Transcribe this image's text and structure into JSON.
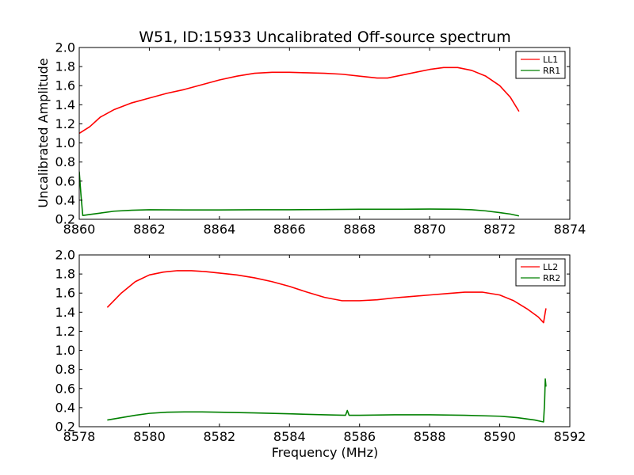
{
  "figure": {
    "title": "W51, ID:15933 Uncalibrated Off-source spectrum",
    "ylabel": "Uncalibrated Amplitude",
    "xlabel": "Frequency (MHz)"
  },
  "colors": {
    "series_1": "#ff0000",
    "series_2": "#008000",
    "axes": "#000000"
  },
  "chart_data": [
    {
      "type": "line",
      "xlim": [
        8860,
        8874
      ],
      "ylim": [
        0.2,
        2.0
      ],
      "xticks": [
        8860,
        8862,
        8864,
        8866,
        8868,
        8870,
        8872,
        8874
      ],
      "yticks": [
        0.2,
        0.4,
        0.6,
        0.8,
        1.0,
        1.2,
        1.4,
        1.6,
        1.8,
        2.0
      ],
      "xtick_labels": [
        "8860",
        "8862",
        "8864",
        "8866",
        "8868",
        "8870",
        "8872",
        "8874"
      ],
      "ytick_labels": [
        "0.2",
        "0.4",
        "0.6",
        "0.8",
        "1.0",
        "1.2",
        "1.4",
        "1.6",
        "1.8",
        "2.0"
      ],
      "legend_position": "top-right",
      "series": [
        {
          "name": "LL1",
          "color": "#ff0000",
          "x": [
            8860.0,
            8860.3,
            8860.6,
            8861.0,
            8861.5,
            8862.0,
            8862.5,
            8863.0,
            8863.5,
            8864.0,
            8864.5,
            8865.0,
            8865.5,
            8866.0,
            8866.5,
            8867.0,
            8867.5,
            8868.0,
            8868.5,
            8868.8,
            8869.2,
            8869.6,
            8870.0,
            8870.4,
            8870.8,
            8871.2,
            8871.6,
            8872.0,
            8872.3,
            8872.55
          ],
          "y": [
            1.1,
            1.17,
            1.27,
            1.35,
            1.42,
            1.47,
            1.52,
            1.56,
            1.61,
            1.66,
            1.7,
            1.73,
            1.74,
            1.74,
            1.735,
            1.73,
            1.72,
            1.7,
            1.68,
            1.68,
            1.71,
            1.74,
            1.77,
            1.79,
            1.79,
            1.76,
            1.7,
            1.6,
            1.48,
            1.33
          ]
        },
        {
          "name": "RR1",
          "color": "#008000",
          "x": [
            8860.0,
            8860.05,
            8860.1,
            8860.3,
            8860.6,
            8861.0,
            8861.5,
            8862.0,
            8863.0,
            8864.0,
            8865.0,
            8866.0,
            8867.0,
            8868.0,
            8869.0,
            8870.0,
            8870.8,
            8871.2,
            8871.6,
            8872.0,
            8872.3,
            8872.55
          ],
          "y": [
            0.7,
            0.45,
            0.24,
            0.25,
            0.265,
            0.285,
            0.295,
            0.3,
            0.298,
            0.298,
            0.3,
            0.3,
            0.302,
            0.305,
            0.305,
            0.307,
            0.305,
            0.3,
            0.288,
            0.27,
            0.255,
            0.235
          ]
        }
      ]
    },
    {
      "type": "line",
      "xlim": [
        8578,
        8592
      ],
      "ylim": [
        0.2,
        2.0
      ],
      "xticks": [
        8578,
        8580,
        8582,
        8584,
        8586,
        8588,
        8590,
        8592
      ],
      "yticks": [
        0.2,
        0.4,
        0.6,
        0.8,
        1.0,
        1.2,
        1.4,
        1.6,
        1.8,
        2.0
      ],
      "xtick_labels": [
        "8578",
        "8580",
        "8582",
        "8584",
        "8586",
        "8588",
        "8590",
        "8592"
      ],
      "ytick_labels": [
        "0.2",
        "0.4",
        "0.6",
        "0.8",
        "1.0",
        "1.2",
        "1.4",
        "1.6",
        "1.8",
        "2.0"
      ],
      "legend_position": "top-right",
      "series": [
        {
          "name": "LL2",
          "color": "#ff0000",
          "x": [
            8578.8,
            8579.2,
            8579.6,
            8580.0,
            8580.4,
            8580.8,
            8581.2,
            8581.6,
            8582.0,
            8582.5,
            8583.0,
            8583.5,
            8584.0,
            8584.5,
            8585.0,
            8585.5,
            8586.0,
            8586.5,
            8587.0,
            8587.5,
            8588.0,
            8588.5,
            8589.0,
            8589.5,
            8590.0,
            8590.4,
            8590.8,
            8591.1,
            8591.25,
            8591.3,
            8591.32
          ],
          "y": [
            1.45,
            1.6,
            1.72,
            1.79,
            1.82,
            1.835,
            1.835,
            1.825,
            1.81,
            1.79,
            1.76,
            1.72,
            1.67,
            1.61,
            1.555,
            1.52,
            1.52,
            1.53,
            1.55,
            1.565,
            1.58,
            1.595,
            1.61,
            1.61,
            1.58,
            1.52,
            1.43,
            1.35,
            1.29,
            1.4,
            1.44
          ]
        },
        {
          "name": "RR2",
          "color": "#008000",
          "x": [
            8578.8,
            8579.2,
            8579.6,
            8580.0,
            8580.5,
            8581.0,
            8581.5,
            8582.0,
            8583.0,
            8584.0,
            8585.0,
            8585.6,
            8585.65,
            8585.7,
            8586.0,
            8587.0,
            8588.0,
            8589.0,
            8590.0,
            8590.5,
            8591.0,
            8591.25,
            8591.28,
            8591.3,
            8591.32
          ],
          "y": [
            0.27,
            0.295,
            0.32,
            0.34,
            0.352,
            0.355,
            0.355,
            0.352,
            0.345,
            0.335,
            0.325,
            0.32,
            0.37,
            0.32,
            0.32,
            0.325,
            0.325,
            0.32,
            0.31,
            0.295,
            0.27,
            0.25,
            0.45,
            0.7,
            0.62
          ]
        }
      ]
    }
  ]
}
